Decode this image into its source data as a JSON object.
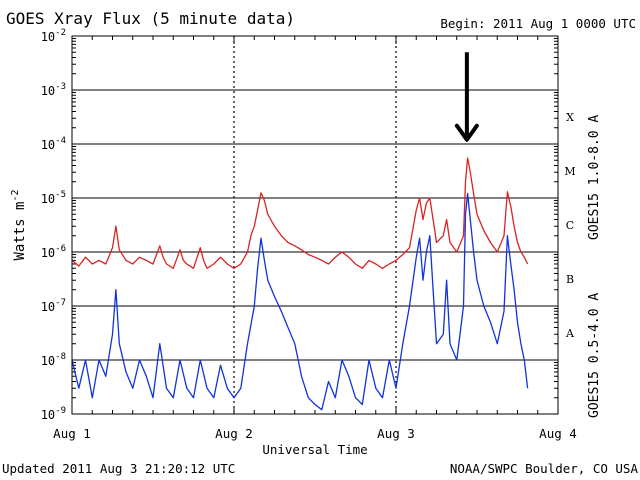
{
  "chart_data": {
    "type": "line",
    "title": "GOES Xray Flux (5 minute data)",
    "begin_label": "Begin:  2011 Aug 1 0000 UTC",
    "xlabel": "Universal Time",
    "ylabel": "Watts m",
    "ylabel_sup": "-2",
    "y_scale": "log",
    "ylim": [
      1e-09,
      0.01
    ],
    "xlim": [
      0,
      72
    ],
    "x_unit": "hours since 2011 Aug 1 0000 UTC",
    "x_ticks": [
      {
        "label": "Aug 1",
        "x": 0
      },
      {
        "label": "Aug 2",
        "x": 24
      },
      {
        "label": "Aug 3",
        "x": 48
      },
      {
        "label": "Aug 4",
        "x": 72
      }
    ],
    "y_ticks": [
      {
        "base": "10",
        "exp": "-9",
        "value": 1e-09
      },
      {
        "base": "10",
        "exp": "-8",
        "value": 1e-08
      },
      {
        "base": "10",
        "exp": "-7",
        "value": 1e-07
      },
      {
        "base": "10",
        "exp": "-6",
        "value": 1e-06
      },
      {
        "base": "10",
        "exp": "-5",
        "value": 1e-05
      },
      {
        "base": "10",
        "exp": "-4",
        "value": 0.0001
      },
      {
        "base": "10",
        "exp": "-3",
        "value": 0.001
      },
      {
        "base": "10",
        "exp": "-2",
        "value": 0.01
      }
    ],
    "flare_classes": [
      {
        "label": "A",
        "value": 3.16e-08
      },
      {
        "label": "B",
        "value": 3.16e-07
      },
      {
        "label": "C",
        "value": 3.16e-06
      },
      {
        "label": "M",
        "value": 3.16e-05
      },
      {
        "label": "X",
        "value": 0.000316
      }
    ],
    "grid": "horizontal lines at each decade; dotted vertical lines at day boundaries",
    "annotation": {
      "type": "arrow",
      "x": 58.5,
      "y_from": 0.005,
      "y_to": 0.00012
    },
    "series": [
      {
        "name": "GOES15 1.0-8.0 A",
        "color": "#dd2222",
        "points": [
          [
            0.0,
            7e-07
          ],
          [
            1.0,
            5.5e-07
          ],
          [
            2.0,
            8e-07
          ],
          [
            3.0,
            6e-07
          ],
          [
            4.0,
            7e-07
          ],
          [
            5.0,
            6e-07
          ],
          [
            6.0,
            1.2e-06
          ],
          [
            6.5,
            3e-06
          ],
          [
            7.0,
            1.1e-06
          ],
          [
            8.0,
            7e-07
          ],
          [
            9.0,
            6e-07
          ],
          [
            10.0,
            8e-07
          ],
          [
            11.0,
            7e-07
          ],
          [
            12.0,
            6e-07
          ],
          [
            13.0,
            1.3e-06
          ],
          [
            13.5,
            8e-07
          ],
          [
            14.0,
            6e-07
          ],
          [
            15.0,
            5e-07
          ],
          [
            16.0,
            1.1e-06
          ],
          [
            16.5,
            7e-07
          ],
          [
            17.0,
            6e-07
          ],
          [
            18.0,
            5e-07
          ],
          [
            19.0,
            1.2e-06
          ],
          [
            19.5,
            7e-07
          ],
          [
            20.0,
            5e-07
          ],
          [
            21.0,
            6e-07
          ],
          [
            22.0,
            8e-07
          ],
          [
            23.0,
            6e-07
          ],
          [
            24.0,
            5e-07
          ],
          [
            25.0,
            6e-07
          ],
          [
            26.0,
            1e-06
          ],
          [
            26.5,
            2e-06
          ],
          [
            27.0,
            3e-06
          ],
          [
            27.5,
            6e-06
          ],
          [
            28.0,
            1.25e-05
          ],
          [
            28.5,
            9e-06
          ],
          [
            29.0,
            5e-06
          ],
          [
            30.0,
            3e-06
          ],
          [
            31.0,
            2e-06
          ],
          [
            32.0,
            1.5e-06
          ],
          [
            33.0,
            1.3e-06
          ],
          [
            34.0,
            1.1e-06
          ],
          [
            35.0,
            9e-07
          ],
          [
            36.0,
            8e-07
          ],
          [
            37.0,
            7e-07
          ],
          [
            38.0,
            6e-07
          ],
          [
            39.0,
            8e-07
          ],
          [
            40.0,
            1e-06
          ],
          [
            41.0,
            8e-07
          ],
          [
            42.0,
            6e-07
          ],
          [
            43.0,
            5e-07
          ],
          [
            44.0,
            7e-07
          ],
          [
            45.0,
            6e-07
          ],
          [
            46.0,
            5e-07
          ],
          [
            47.0,
            6e-07
          ],
          [
            48.0,
            7e-07
          ],
          [
            49.0,
            9e-07
          ],
          [
            50.0,
            1.2e-06
          ],
          [
            51.0,
            6e-06
          ],
          [
            51.5,
            1e-05
          ],
          [
            52.0,
            4e-06
          ],
          [
            52.5,
            8e-06
          ],
          [
            53.0,
            1e-05
          ],
          [
            53.5,
            4e-06
          ],
          [
            54.0,
            1.5e-06
          ],
          [
            55.0,
            2e-06
          ],
          [
            55.5,
            4e-06
          ],
          [
            56.0,
            1.5e-06
          ],
          [
            57.0,
            1e-06
          ],
          [
            58.0,
            2e-06
          ],
          [
            58.3,
            2e-05
          ],
          [
            58.6,
            5.5e-05
          ],
          [
            59.0,
            3e-05
          ],
          [
            59.5,
            1.2e-05
          ],
          [
            60.0,
            5e-06
          ],
          [
            61.0,
            2.5e-06
          ],
          [
            62.0,
            1.5e-06
          ],
          [
            63.0,
            1e-06
          ],
          [
            64.0,
            2e-06
          ],
          [
            64.5,
            1.3e-05
          ],
          [
            65.0,
            7e-06
          ],
          [
            65.5,
            3e-06
          ],
          [
            66.0,
            1.5e-06
          ],
          [
            66.5,
            1e-06
          ],
          [
            67.0,
            8e-07
          ],
          [
            67.5,
            6e-07
          ]
        ]
      },
      {
        "name": "GOES15 0.5-4.0 A",
        "color": "#1133dd",
        "points": [
          [
            0.0,
            1e-08
          ],
          [
            1.0,
            3e-09
          ],
          [
            2.0,
            1e-08
          ],
          [
            3.0,
            2e-09
          ],
          [
            4.0,
            1e-08
          ],
          [
            5.0,
            5e-09
          ],
          [
            6.0,
            3e-08
          ],
          [
            6.5,
            2e-07
          ],
          [
            7.0,
            2e-08
          ],
          [
            8.0,
            6e-09
          ],
          [
            9.0,
            3e-09
          ],
          [
            10.0,
            1e-08
          ],
          [
            11.0,
            5e-09
          ],
          [
            12.0,
            2e-09
          ],
          [
            13.0,
            2e-08
          ],
          [
            14.0,
            3e-09
          ],
          [
            15.0,
            2e-09
          ],
          [
            16.0,
            1e-08
          ],
          [
            17.0,
            3e-09
          ],
          [
            18.0,
            2e-09
          ],
          [
            19.0,
            1e-08
          ],
          [
            20.0,
            3e-09
          ],
          [
            21.0,
            2e-09
          ],
          [
            22.0,
            8e-09
          ],
          [
            23.0,
            3e-09
          ],
          [
            24.0,
            2e-09
          ],
          [
            25.0,
            3e-09
          ],
          [
            26.0,
            2e-08
          ],
          [
            27.0,
            1e-07
          ],
          [
            27.5,
            5e-07
          ],
          [
            28.0,
            1.8e-06
          ],
          [
            28.5,
            7e-07
          ],
          [
            29.0,
            3e-07
          ],
          [
            30.0,
            1.5e-07
          ],
          [
            31.0,
            8e-08
          ],
          [
            32.0,
            4e-08
          ],
          [
            33.0,
            2e-08
          ],
          [
            34.0,
            5e-09
          ],
          [
            35.0,
            2e-09
          ],
          [
            36.0,
            1.5e-09
          ],
          [
            37.0,
            1.2e-09
          ],
          [
            38.0,
            4e-09
          ],
          [
            39.0,
            2e-09
          ],
          [
            40.0,
            1e-08
          ],
          [
            41.0,
            5e-09
          ],
          [
            42.0,
            2e-09
          ],
          [
            43.0,
            1.5e-09
          ],
          [
            44.0,
            1e-08
          ],
          [
            45.0,
            3e-09
          ],
          [
            46.0,
            2e-09
          ],
          [
            47.0,
            1e-08
          ],
          [
            48.0,
            3e-09
          ],
          [
            49.0,
            2e-08
          ],
          [
            50.0,
            1e-07
          ],
          [
            51.0,
            8e-07
          ],
          [
            51.5,
            1.8e-06
          ],
          [
            52.0,
            3e-07
          ],
          [
            52.5,
            1e-06
          ],
          [
            53.0,
            2e-06
          ],
          [
            53.5,
            2e-07
          ],
          [
            54.0,
            2e-08
          ],
          [
            55.0,
            3e-08
          ],
          [
            55.5,
            3e-07
          ],
          [
            56.0,
            2e-08
          ],
          [
            57.0,
            1e-08
          ],
          [
            58.0,
            1e-07
          ],
          [
            58.3,
            5e-06
          ],
          [
            58.6,
            1.2e-05
          ],
          [
            59.0,
            4e-06
          ],
          [
            59.5,
            1e-06
          ],
          [
            60.0,
            3e-07
          ],
          [
            61.0,
            1e-07
          ],
          [
            62.0,
            5e-08
          ],
          [
            63.0,
            2e-08
          ],
          [
            64.0,
            8e-08
          ],
          [
            64.5,
            2e-06
          ],
          [
            65.0,
            6e-07
          ],
          [
            65.5,
            2e-07
          ],
          [
            66.0,
            5e-08
          ],
          [
            66.5,
            2e-08
          ],
          [
            67.0,
            1e-08
          ],
          [
            67.5,
            3e-09
          ]
        ]
      }
    ]
  },
  "footer": {
    "updated": "Updated 2011 Aug  3 21:20:12 UTC",
    "credit": "NOAA/SWPC Boulder, CO USA"
  }
}
